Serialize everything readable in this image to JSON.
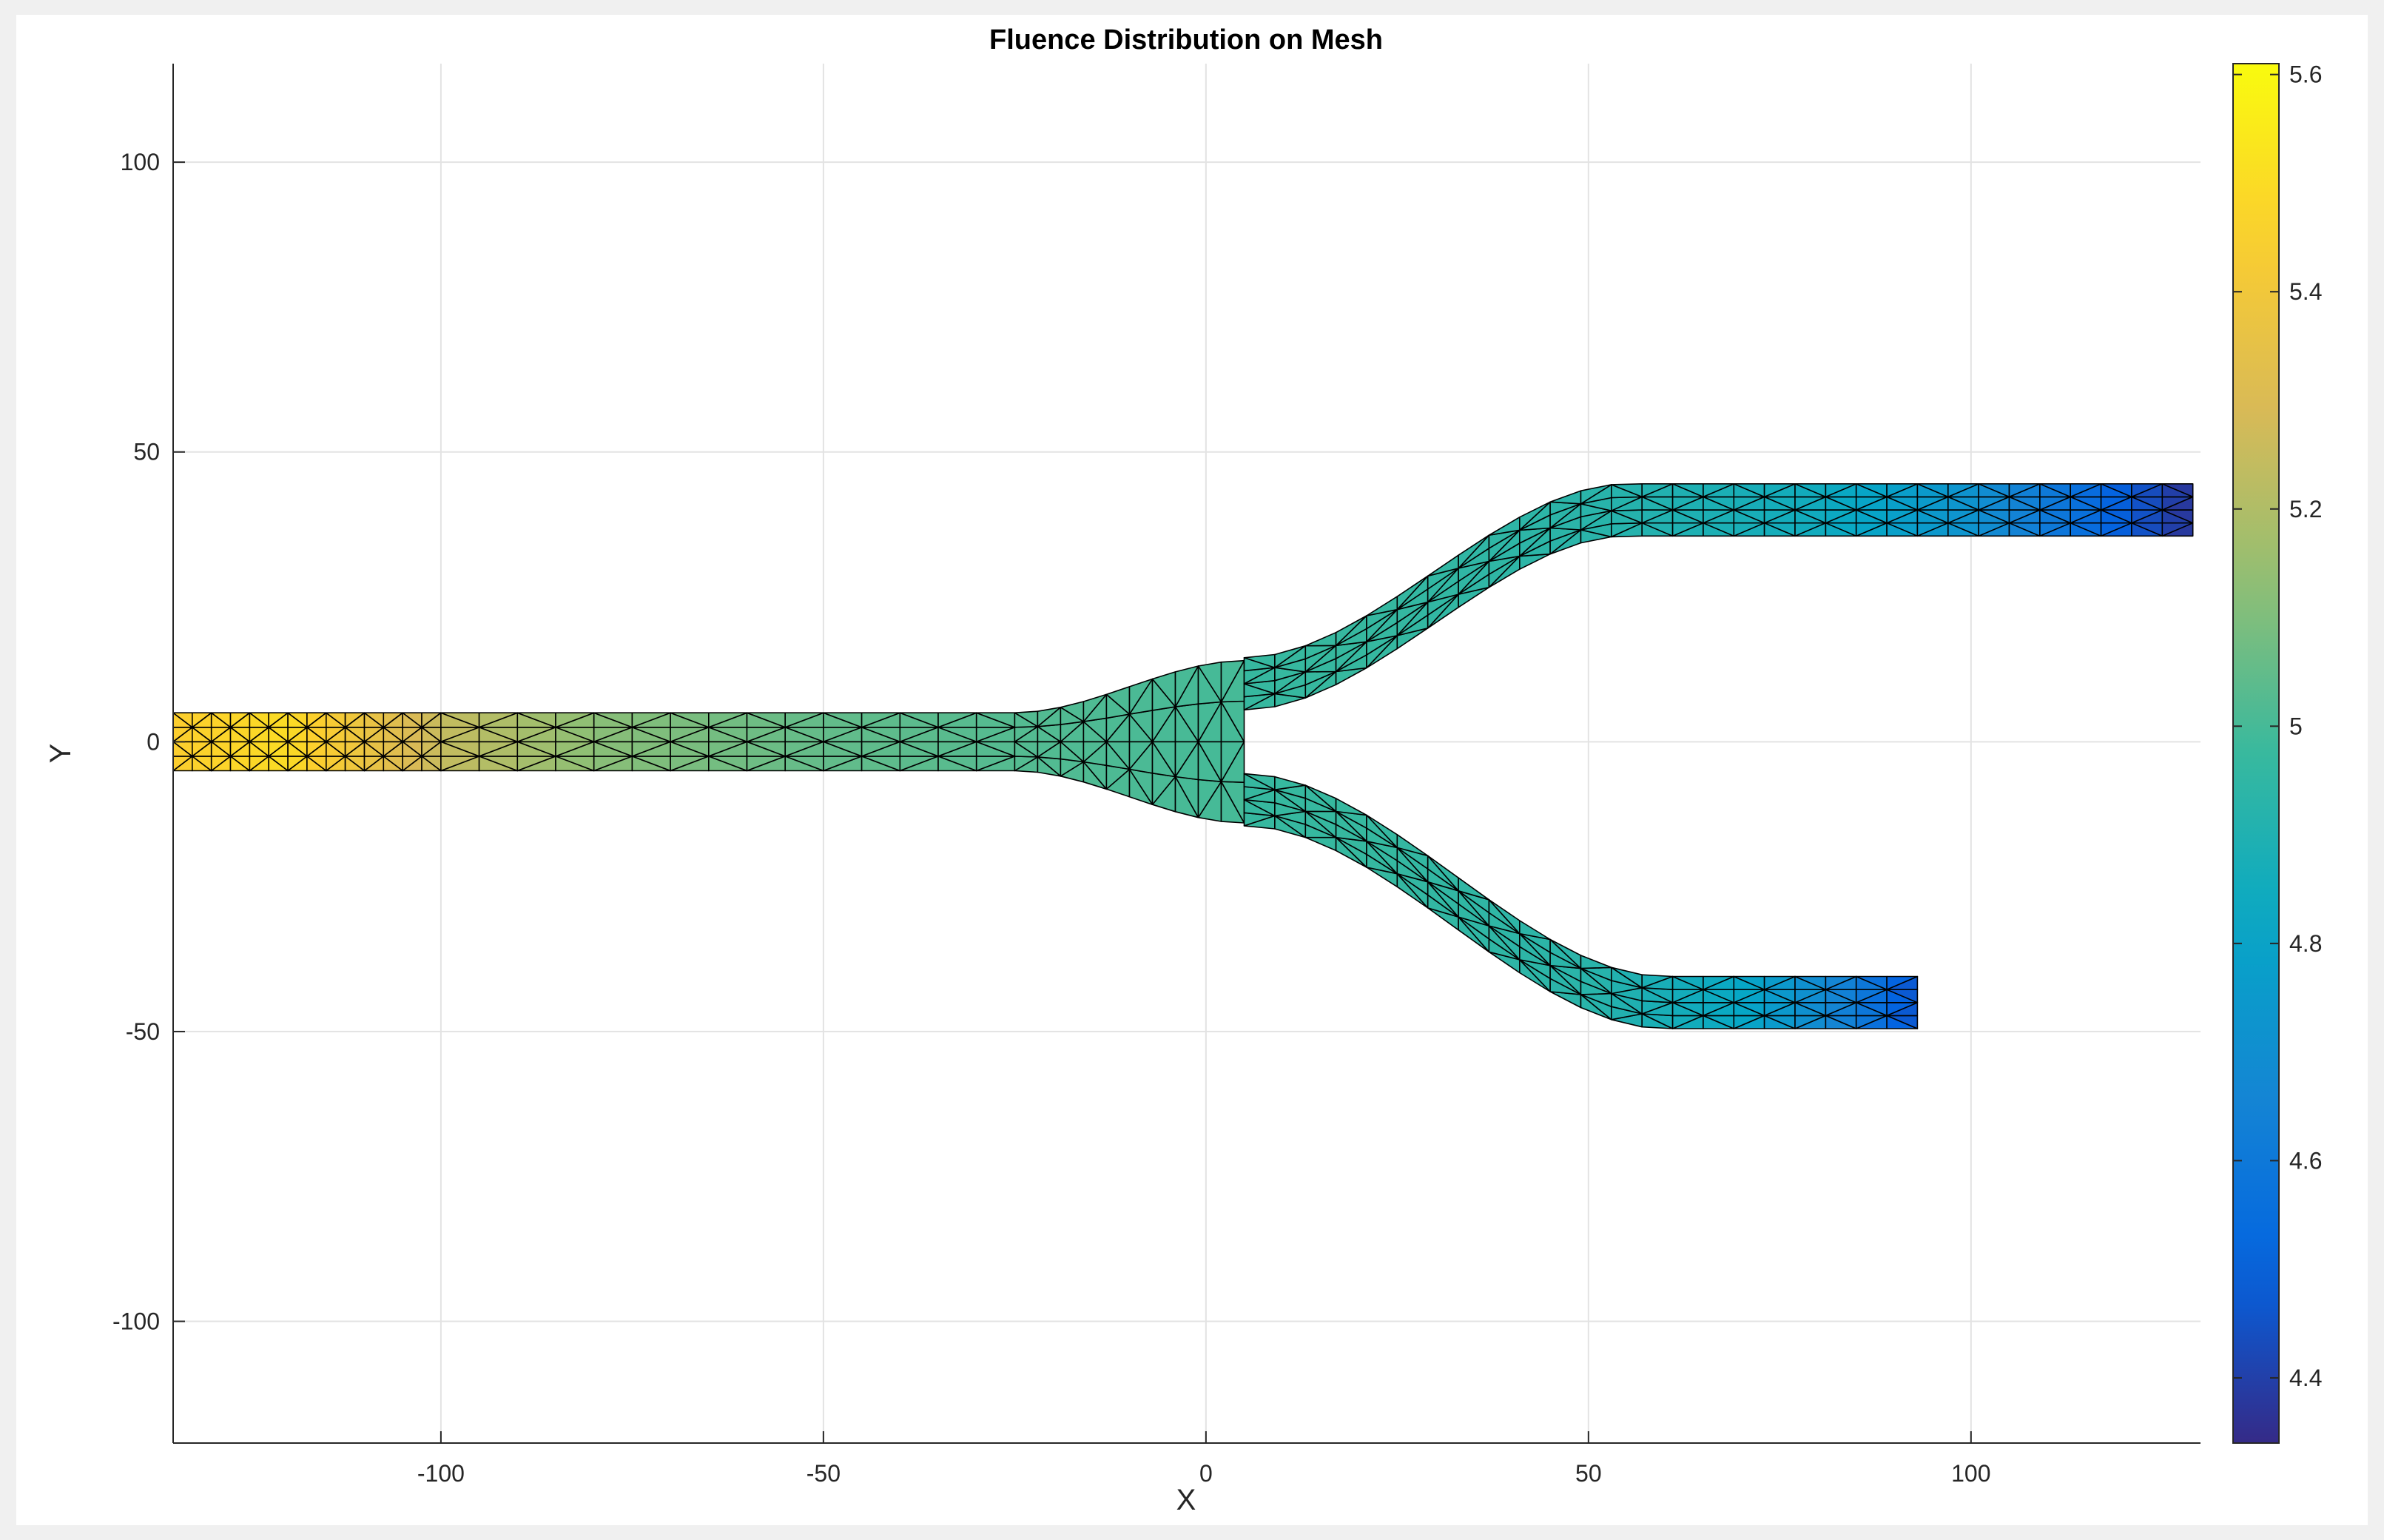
{
  "chart_data": {
    "type": "heatmap",
    "subtype": "triangular-mesh-patch",
    "title": "Fluence Distribution on Mesh",
    "xlabel": "X",
    "ylabel": "Y",
    "xlim": [
      -135,
      130
    ],
    "ylim": [
      -121,
      117
    ],
    "xticks": [
      -100,
      -50,
      0,
      50,
      100
    ],
    "xtick_labels": [
      "-100",
      "-50",
      "0",
      "50",
      "100"
    ],
    "yticks": [
      100,
      50,
      0,
      -50,
      -100
    ],
    "ytick_labels": [
      "100",
      "50",
      "0",
      "-50",
      "-100"
    ],
    "grid": true,
    "colormap": "parula",
    "colorbar": {
      "location": "right",
      "clim": [
        4.34,
        5.61
      ],
      "ticks": [
        5.6,
        5.4,
        5.2,
        5,
        4.8,
        4.6,
        4.4
      ],
      "tick_labels": [
        "5.6",
        "5.4",
        "5.2",
        "5",
        "4.8",
        "4.6",
        "4.4"
      ]
    },
    "geometry": {
      "shape": "Y-branch waveguide",
      "input_arm": {
        "x_range": [
          -135,
          -25
        ],
        "y_center": 0,
        "width": 10
      },
      "upper_arm": {
        "x_end": 130,
        "y_center": 40,
        "width": 9
      },
      "lower_arm": {
        "x_end": 95,
        "y_center": -45,
        "width": 9
      },
      "split_x": 5
    },
    "field_samples": {
      "along_input_arm": [
        {
          "x": -135,
          "value": 5.45
        },
        {
          "x": -120,
          "value": 5.5
        },
        {
          "x": -108,
          "value": 5.35
        },
        {
          "x": -100,
          "value": 5.25
        },
        {
          "x": -80,
          "value": 5.12
        },
        {
          "x": -50,
          "value": 5.05
        },
        {
          "x": -20,
          "value": 5.02
        },
        {
          "x": 0,
          "value": 5.0
        }
      ],
      "along_upper_arm": [
        {
          "x": 20,
          "value": 4.97
        },
        {
          "x": 50,
          "value": 4.93
        },
        {
          "x": 80,
          "value": 4.85
        },
        {
          "x": 100,
          "value": 4.72
        },
        {
          "x": 115,
          "value": 4.55
        },
        {
          "x": 130,
          "value": 4.35
        }
      ],
      "along_lower_arm": [
        {
          "x": 20,
          "value": 4.97
        },
        {
          "x": 50,
          "value": 4.93
        },
        {
          "x": 70,
          "value": 4.82
        },
        {
          "x": 85,
          "value": 4.62
        },
        {
          "x": 95,
          "value": 4.4
        }
      ]
    },
    "mesh_edge_color": "#000000"
  }
}
